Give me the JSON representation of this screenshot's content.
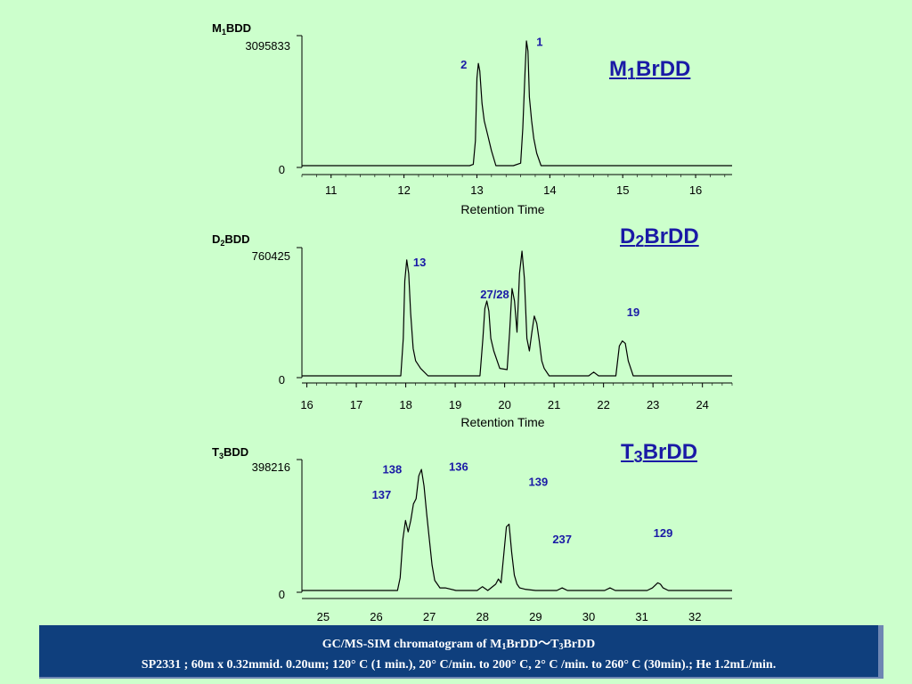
{
  "chart_data": [
    {
      "type": "line",
      "compound_label": {
        "base": "M",
        "sub": "1",
        "rest": "BDD"
      },
      "ymax_label": "3095833",
      "ymin_label": "0",
      "xlabel": "Retention Time",
      "xlim": [
        10.6,
        16.5
      ],
      "ylim": [
        0,
        1
      ],
      "x_ticks": [
        11,
        12,
        13,
        14,
        15,
        16
      ],
      "big_title": {
        "base": "M",
        "sub": "1",
        "rest": "BrDD"
      },
      "x": [
        10.6,
        12.9,
        12.95,
        12.98,
        13.0,
        13.02,
        13.04,
        13.07,
        13.1,
        13.15,
        13.2,
        13.26,
        13.5,
        13.6,
        13.63,
        13.66,
        13.68,
        13.7,
        13.72,
        13.75,
        13.78,
        13.82,
        13.88,
        16.5
      ],
      "y": [
        0.0,
        0.0,
        0.01,
        0.2,
        0.7,
        0.82,
        0.76,
        0.5,
        0.36,
        0.24,
        0.12,
        0.0,
        0.0,
        0.02,
        0.3,
        0.75,
        1.0,
        0.92,
        0.55,
        0.36,
        0.22,
        0.1,
        0.0,
        0.0
      ],
      "annotations": [
        {
          "text": "1",
          "x": 13.86,
          "y": 0.96
        },
        {
          "text": "2",
          "x": 12.82,
          "y": 0.78
        }
      ]
    },
    {
      "type": "line",
      "compound_label": {
        "base": "D",
        "sub": "2",
        "rest": "BDD"
      },
      "ymax_label": "760425",
      "ymin_label": "0",
      "xlabel": "Retention Time",
      "xlim": [
        15.9,
        24.6
      ],
      "ylim": [
        0,
        1
      ],
      "x_ticks": [
        16,
        17,
        18,
        19,
        20,
        21,
        22,
        23,
        24
      ],
      "big_title": {
        "base": "D",
        "sub": "2",
        "rest": "BrDD"
      },
      "x": [
        15.9,
        17.9,
        17.95,
        17.98,
        18.02,
        18.06,
        18.1,
        18.15,
        18.2,
        18.3,
        18.45,
        19.5,
        19.56,
        19.6,
        19.64,
        19.68,
        19.72,
        19.78,
        19.9,
        20.05,
        20.1,
        20.15,
        20.2,
        20.25,
        20.3,
        20.35,
        20.4,
        20.45,
        20.5,
        20.55,
        20.6,
        20.65,
        20.7,
        20.75,
        20.8,
        20.9,
        21.7,
        21.8,
        21.9,
        22.25,
        22.32,
        22.38,
        22.44,
        22.5,
        22.6,
        24.6
      ],
      "y": [
        0.0,
        0.0,
        0.3,
        0.76,
        0.93,
        0.82,
        0.5,
        0.22,
        0.12,
        0.06,
        0.0,
        0.0,
        0.3,
        0.54,
        0.6,
        0.52,
        0.3,
        0.2,
        0.06,
        0.05,
        0.35,
        0.7,
        0.6,
        0.35,
        0.82,
        1.0,
        0.78,
        0.3,
        0.2,
        0.35,
        0.48,
        0.42,
        0.28,
        0.12,
        0.06,
        0.0,
        0.0,
        0.03,
        0.0,
        0.0,
        0.24,
        0.28,
        0.26,
        0.12,
        0.0,
        0.0
      ],
      "annotations": [
        {
          "text": "13",
          "x": 18.28,
          "y": 0.88
        },
        {
          "text": "27/28",
          "x": 19.8,
          "y": 0.62
        },
        {
          "text": "19",
          "x": 22.6,
          "y": 0.48
        }
      ]
    },
    {
      "type": "line",
      "compound_label": {
        "base": "T",
        "sub": "3",
        "rest": "BDD"
      },
      "ymax_label": "398216",
      "ymin_label": "0",
      "xlabel": "",
      "xlim": [
        24.6,
        32.7
      ],
      "ylim": [
        0,
        1
      ],
      "x_ticks": [
        25,
        26,
        27,
        28,
        29,
        30,
        31,
        32
      ],
      "big_title": {
        "base": "T",
        "sub": "3",
        "rest": "BrDD"
      },
      "x": [
        24.6,
        26.4,
        26.45,
        26.5,
        26.55,
        26.6,
        26.65,
        26.7,
        26.75,
        26.8,
        26.85,
        26.9,
        26.95,
        27.0,
        27.05,
        27.1,
        27.2,
        27.3,
        27.5,
        27.9,
        28.0,
        28.1,
        28.25,
        28.3,
        28.35,
        28.4,
        28.45,
        28.5,
        28.55,
        28.6,
        28.65,
        28.7,
        28.8,
        29.0,
        29.4,
        29.5,
        29.6,
        30.3,
        30.4,
        30.5,
        31.1,
        31.2,
        31.3,
        31.35,
        31.4,
        31.5,
        32.7
      ],
      "y": [
        0.0,
        0.0,
        0.1,
        0.4,
        0.55,
        0.46,
        0.55,
        0.68,
        0.72,
        0.9,
        0.95,
        0.82,
        0.6,
        0.4,
        0.2,
        0.08,
        0.02,
        0.02,
        0.0,
        0.0,
        0.03,
        0.0,
        0.05,
        0.09,
        0.06,
        0.28,
        0.5,
        0.52,
        0.3,
        0.12,
        0.05,
        0.02,
        0.01,
        0.0,
        0.0,
        0.02,
        0.0,
        0.0,
        0.02,
        0.0,
        0.0,
        0.02,
        0.06,
        0.05,
        0.02,
        0.0,
        0.0
      ],
      "annotations": [
        {
          "text": "138",
          "x": 26.3,
          "y": 0.92
        },
        {
          "text": "136",
          "x": 27.55,
          "y": 0.94
        },
        {
          "text": "137",
          "x": 26.1,
          "y": 0.72
        },
        {
          "text": "139",
          "x": 29.05,
          "y": 0.82
        },
        {
          "text": "237",
          "x": 29.5,
          "y": 0.37
        },
        {
          "text": "129",
          "x": 31.4,
          "y": 0.42
        }
      ]
    }
  ],
  "caption": {
    "line1_prefix": "GC/MS-SIM chromatogram of  M",
    "line1_sub1": "1",
    "line1_mid": "BrDD～T",
    "line1_sub2": "3",
    "line1_suffix": "BrDD",
    "line2": "SP2331 ; 60m x 0.32mmid. 0.20um; 120° C (1 min.), 20° C/min. to 200° C, 2° C /min. to 260° C (30min).; He 1.2mL/min."
  },
  "colors": {
    "background": "#ccffcc",
    "annotation": "#1a1aa6",
    "caption_bg": "#0f3f7d"
  }
}
